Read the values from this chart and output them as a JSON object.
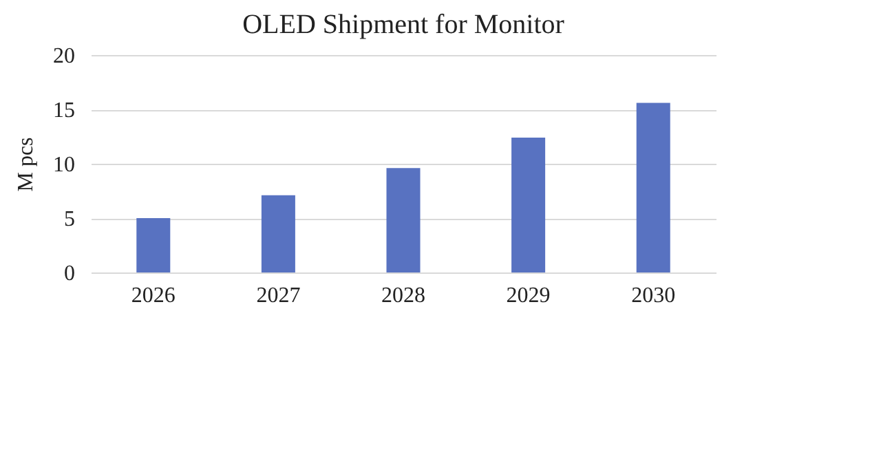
{
  "chart_data": {
    "type": "bar",
    "title": "OLED Shipment for Monitor",
    "ylabel": "M pcs",
    "categories": [
      "2026",
      "2027",
      "2028",
      "2029",
      "2030"
    ],
    "values": [
      5.0,
      7.1,
      9.6,
      12.4,
      15.6
    ],
    "color": "#5872c1",
    "ylim": [
      0,
      20
    ],
    "yticks": [
      0,
      5,
      10,
      15,
      20
    ],
    "grid": "y"
  }
}
